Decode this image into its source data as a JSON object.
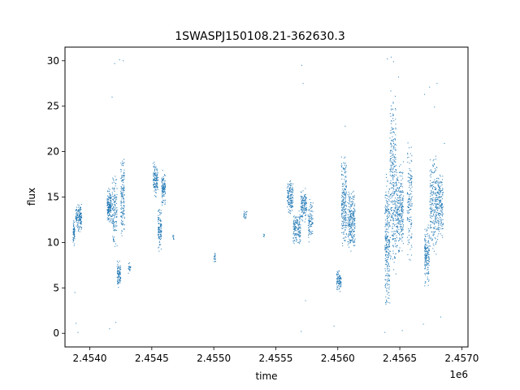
{
  "chart_data": {
    "type": "scatter",
    "title": "1SWASPJ150108.21-362630.3",
    "xlabel": "time",
    "ylabel": "flux",
    "x_offset_label": "1e6",
    "xlim": [
      2453800,
      2457050
    ],
    "ylim": [
      -1.5,
      31.5
    ],
    "x_ticks": [
      2454000,
      2454500,
      2455000,
      2455500,
      2456000,
      2456500,
      2457000
    ],
    "x_tick_labels": [
      "2.4540",
      "2.4545",
      "2.4550",
      "2.4555",
      "2.4560",
      "2.4565",
      "2.4570"
    ],
    "y_ticks": [
      0,
      5,
      10,
      15,
      20,
      25,
      30
    ],
    "y_tick_labels": [
      "0",
      "5",
      "10",
      "15",
      "20",
      "25",
      "30"
    ],
    "grid": false,
    "marker_color": "#1f77b4",
    "series": [
      {
        "name": "",
        "clusters": [
          {
            "x": [
              2453865,
              2453880
            ],
            "y": [
              9.5,
              12.5
            ],
            "n": 60
          },
          {
            "x": [
              2453885,
              2453935
            ],
            "y": [
              11,
              14.5
            ],
            "n": 140
          },
          {
            "x": [
              2454140,
              2454175
            ],
            "y": [
              12,
              16
            ],
            "n": 160
          },
          {
            "x": [
              2454180,
              2454220
            ],
            "y": [
              9,
              18
            ],
            "n": 140
          },
          {
            "x": [
              2454220,
              2454250
            ],
            "y": [
              5,
              8
            ],
            "n": 90
          },
          {
            "x": [
              2454250,
              2454280
            ],
            "y": [
              10,
              20
            ],
            "n": 150
          },
          {
            "x": [
              2454310,
              2454330
            ],
            "y": [
              6.5,
              8
            ],
            "n": 20
          },
          {
            "x": [
              2454510,
              2454550
            ],
            "y": [
              15,
              19
            ],
            "n": 130
          },
          {
            "x": [
              2454550,
              2454580
            ],
            "y": [
              9,
              14
            ],
            "n": 110
          },
          {
            "x": [
              2454580,
              2454610
            ],
            "y": [
              14,
              18
            ],
            "n": 110
          },
          {
            "x": [
              2454670,
              2454680
            ],
            "y": [
              10,
              11
            ],
            "n": 8
          },
          {
            "x": [
              2455000,
              2455015
            ],
            "y": [
              7.5,
              9
            ],
            "n": 18
          },
          {
            "x": [
              2455240,
              2455270
            ],
            "y": [
              12.5,
              13.5
            ],
            "n": 20
          },
          {
            "x": [
              2455400,
              2455410
            ],
            "y": [
              10.5,
              11
            ],
            "n": 6
          },
          {
            "x": [
              2455590,
              2455640
            ],
            "y": [
              13,
              17
            ],
            "n": 140
          },
          {
            "x": [
              2455640,
              2455700
            ],
            "y": [
              9.5,
              13.5
            ],
            "n": 150
          },
          {
            "x": [
              2455700,
              2455750
            ],
            "y": [
              12,
              16
            ],
            "n": 130
          },
          {
            "x": [
              2455760,
              2455800
            ],
            "y": [
              10,
              15
            ],
            "n": 90
          },
          {
            "x": [
              2455990,
              2456030
            ],
            "y": [
              4.5,
              7
            ],
            "n": 80
          },
          {
            "x": [
              2456030,
              2456070
            ],
            "y": [
              9,
              20
            ],
            "n": 220
          },
          {
            "x": [
              2456080,
              2456140
            ],
            "y": [
              9,
              16
            ],
            "n": 250
          },
          {
            "x": [
              2456380,
              2456420
            ],
            "y": [
              2,
              18
            ],
            "n": 260
          },
          {
            "x": [
              2456420,
              2456470
            ],
            "y": [
              6,
              27
            ],
            "n": 300
          },
          {
            "x": [
              2456470,
              2456530
            ],
            "y": [
              8,
              19
            ],
            "n": 260
          },
          {
            "x": [
              2456560,
              2456600
            ],
            "y": [
              8,
              22
            ],
            "n": 140
          },
          {
            "x": [
              2456700,
              2456740
            ],
            "y": [
              5,
              12
            ],
            "n": 160
          },
          {
            "x": [
              2456740,
              2456800
            ],
            "y": [
              8,
              20
            ],
            "n": 220
          },
          {
            "x": [
              2456800,
              2456850
            ],
            "y": [
              10,
              18
            ],
            "n": 180
          }
        ],
        "outliers": [
          [
            2453905,
            0.1
          ],
          [
            2453880,
            4.5
          ],
          [
            2453890,
            1.1
          ],
          [
            2454180,
            26
          ],
          [
            2454200,
            29.7
          ],
          [
            2454270,
            30.0
          ],
          [
            2454240,
            30.1
          ],
          [
            2454210,
            1.2
          ],
          [
            2454160,
            0.5
          ],
          [
            2455710,
            29.5
          ],
          [
            2455720,
            27.5
          ],
          [
            2455705,
            0.2
          ],
          [
            2455740,
            3.6
          ],
          [
            2456060,
            22.8
          ],
          [
            2455970,
            0.8
          ],
          [
            2456400,
            30.2
          ],
          [
            2456430,
            30.4
          ],
          [
            2456450,
            29.9
          ],
          [
            2456380,
            0.1
          ],
          [
            2456520,
            0.3
          ],
          [
            2456490,
            28.2
          ],
          [
            2456740,
            27.1
          ],
          [
            2456780,
            24.9
          ],
          [
            2456800,
            27.5
          ],
          [
            2456700,
            26.3
          ],
          [
            2456690,
            1.0
          ],
          [
            2456830,
            1.8
          ],
          [
            2456790,
            19.5
          ],
          [
            2456860,
            20.9
          ]
        ]
      }
    ]
  }
}
